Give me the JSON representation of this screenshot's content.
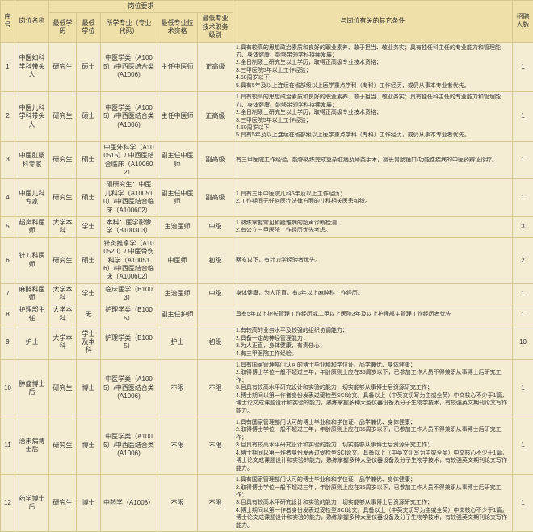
{
  "colors": {
    "bg": "#f5edd3",
    "header": "#eee0a8",
    "border": "#d4c68f",
    "text": "#333333"
  },
  "fonts": {
    "base_size": 8,
    "cond_size": 7,
    "family": "Microsoft YaHei"
  },
  "widths": {
    "seq": 18,
    "name": 42,
    "edu": 34,
    "deg": 30,
    "major": 70,
    "qual": 50,
    "rank": 44,
    "cond": 340,
    "count": 26
  },
  "headers": {
    "seq": "序号",
    "name": "岗位名称",
    "req": "岗位要求",
    "edu": "最低学历",
    "deg": "最低学位",
    "major": "所学专业（专业代码）",
    "qual": "最低专业技术资格",
    "rank": "最低专业技术职务级别",
    "cond": "与岗位有关的其它条件",
    "count": "招聘人数"
  },
  "rows": [
    {
      "seq": "1",
      "name": "中医妇科学科带头人",
      "edu": "研究生",
      "deg": "硕士",
      "major": "中医学类（A1005）/中西医结合类(A1006)",
      "qual": "主任中医师",
      "rank": "正高级",
      "cond": [
        "1.具有较高的思想政治素质和良好的职业素养、敢于担当、敬业务实；具有独任科主任的专业能力和管理能力、身体健康、能够带领学科持续发展；",
        "2.全日制硕士研究生以上学历，取得正高级专业技术资格；",
        "3.三甲医院5年以上工作经验；",
        "4.50周岁以下；",
        "5.具有5年及以上连续在省部级以上医学重点学科（专科）工作经历，或仍从事本专业者优先。"
      ],
      "count": "1"
    },
    {
      "seq": "2",
      "name": "中医儿科学科带头人",
      "edu": "研究生",
      "deg": "硕士",
      "major": "中医学类（A1005）/中西医结合类(A1006)",
      "qual": "主任中医师",
      "rank": "正高级",
      "cond": [
        "1.具有较高的思想政治素质和良好的职业素养、敢于担当、敬业务实；具有独任科主任的专业能力和管理能力、身体健康、能够带领学科持续发展；",
        "2.全日制硕士研究生以上学历，取得正高级专业技术资格；",
        "3.三甲医院5年以上工作经验；",
        "4.50周岁以下；",
        "5.具有5年及以上连续在省部级以上医学重点学科（专科）工作经历，或仍从事本专业者优先。"
      ],
      "count": "1"
    },
    {
      "seq": "3",
      "name": "中医肛肠科专家",
      "edu": "研究生",
      "deg": "硕士",
      "major": "中医外科学（A100515）/ 中西医结合临床（A100602）",
      "qual": "副主任中医师",
      "rank": "副高级",
      "cond": [
        "有三甲医院工作经验，能够熟练完成复杂肛瘘及痔类手术，擅长胃肠镜口/功能性疾病的中医药辨证诊疗。"
      ],
      "count": "1"
    },
    {
      "seq": "4",
      "name": "中医儿科专家",
      "edu": "研究生",
      "deg": "硕士",
      "major": "硕研究生：中医儿科学（A100510）/中西医结合临床（A100602）",
      "qual": "副主任中医师",
      "rank": "副高级",
      "cond": [
        "1.具有三甲中医院儿科5年及以上工作经历；",
        "2.工作期间无任何医疗法律方面的儿科相关医患纠纷。"
      ],
      "count": "1"
    },
    {
      "seq": "5",
      "name": "超声科医师",
      "edu": "大学本科",
      "deg": "学士",
      "major": "本科：医学影像学（B100303）",
      "qual": "主治医师",
      "rank": "中级",
      "cond": [
        "1.熟练掌握常见和疑难病的超声诊断检测；",
        "2.有公立三甲医院工作经历优先考虑。"
      ],
      "count": "3"
    },
    {
      "seq": "6",
      "name": "针刀科医师",
      "edu": "研究生",
      "deg": "硕士",
      "major": "针灸推拿学（A100520）/ 中医骨伤科学（A100516）/中西医结合临床（A100602）",
      "qual": "中医师",
      "rank": "初级",
      "cond": [
        "两岁以下，有针刀学经验者优先。"
      ],
      "count": "2"
    },
    {
      "seq": "7",
      "name": "麻醉科医师",
      "edu": "大学本科",
      "deg": "学士",
      "major": "临床医学（B1003）",
      "qual": "主治医师",
      "rank": "中级",
      "cond": [
        "身体健康，为人正直，有3年以上麻醉科工作经历。"
      ],
      "count": "1"
    },
    {
      "seq": "8",
      "name": "护理部主任",
      "edu": "大学本科",
      "deg": "无",
      "major": "护理学类（B1005）",
      "qual": "副主任护师",
      "rank": "",
      "cond": [
        "具有5年以上护长管理工作经历或二甲以上医院3年及以上护理部主管理工作经历者优先"
      ],
      "count": "1"
    },
    {
      "seq": "9",
      "name": "护士",
      "edu": "大学本科",
      "deg": "学士及本科",
      "major": "护理学类（B1005）",
      "qual": "护士",
      "rank": "初级",
      "cond": [
        "1.有较高的业务水平及较强的组织协调能力；",
        "2.具备一定的神经管理能力；",
        "3.为人正直，身体健康，有责任心；",
        "4.有三甲医院工作经验。"
      ],
      "count": "10"
    },
    {
      "seq": "10",
      "name": "肿瘤博士后",
      "edu": "研究生",
      "deg": "博士",
      "major": "中医学类（A1005）/中西医结合类(A1006)",
      "qual": "不限",
      "rank": "不限",
      "cond": [
        "1.具有国家管理部门认可的博士毕业和和学位证、品学兼优、身体健康；",
        "2.取得博士学位一般不超过三年，年龄原则上应在35周岁以下，已参加工作人员不得兼职从事博士后研究工作；",
        "3.且具有较高水平研究设计和实验的能力，切实能够从事博士后资源研究工作；",
        "4.博士期间以第一作者身份发表过受检型SCI论文。具备以上（中英文切写为主或全英）中文核心不少于1篇，博士论文成课题设计和实验的能力，熟练掌握多种大型仪器设备及分子生物学技术，有较强英文期刊论文写作能力。"
      ],
      "count": "1"
    },
    {
      "seq": "11",
      "name": "治未病博士后",
      "edu": "研究生",
      "deg": "博士",
      "major": "中医学类（A1005）/中西医结合类(A1006)",
      "qual": "不限",
      "rank": "不限",
      "cond": [
        "1.具有国家管理部门认可的博士毕业和和学位证、品学兼优、身体健康；",
        "2.取得博士学位一般不超过三年，年龄原则上应在35周岁以下，已参加工作人员不得兼职从事博士后研究工作；",
        "3.且具有较高水平研究设计和实验的能力，切实能够从事博士后资源研究工作；",
        "4.博士期间以第一作者身份发表过受检型SCI论文。具备以上（中英文切写为主或全英）中文核心不少于1篇，博士论文成课题设计和实验的能力，熟练掌握多种大型仪器设备及分子生物学技术，有较强英文期刊论文写作能力。"
      ],
      "count": "1"
    },
    {
      "seq": "12",
      "name": "药学博士后",
      "edu": "研究生",
      "deg": "博士",
      "major": "中药学（A1008）",
      "qual": "不限",
      "rank": "不限",
      "cond": [
        "1.具有国家管理部门认可的博士毕业和和学位证、品学兼优、身体健康；",
        "2.取得博士学位一般不超过三年，年龄原则上应在35周岁以下，已参加工作人员不得兼职从事博士后研究工作；",
        "3.且具有较高水平研究设计和实验的能力，切实能够从事博士后资源研究工作；",
        "4.博士期间以第一作者身份发表过受检型SCI论文。具备以上（中英文切写为主或全英）中文核心不少于1篇，博士论文成课题设计和实验的能力，熟练掌握多种大型仪器设备及分子生物学技术，有较强英文期刊论文写作能力。"
      ],
      "count": "1"
    }
  ]
}
